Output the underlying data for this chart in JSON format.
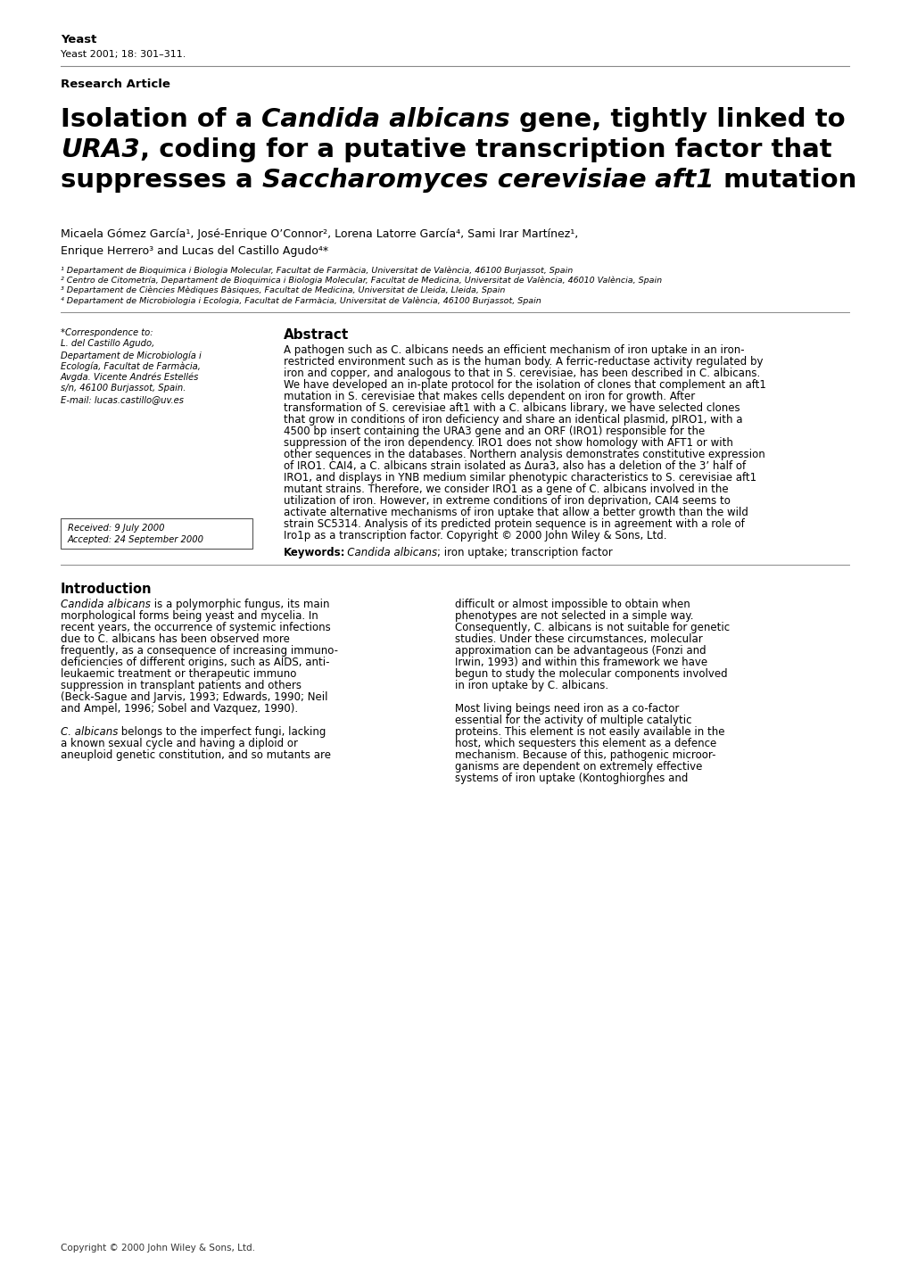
{
  "journal_name": "Yeast",
  "journal_citation": "Yeast 2001; 18: 301–311.",
  "article_type": "Research Article",
  "authors_line1": "Micaela Gómez García¹, José-Enrique O’Connor², Lorena Latorre García⁴, Sami Irar Martínez¹,",
  "authors_line2": "Enrique Herrero³ and Lucas del Castillo Agudo⁴*",
  "affil1": "¹ Departament de Bioquimica i Biologia Molecular, Facultat de Farmàcia, Universitat de València, 46100 Burjassot, Spain",
  "affil2": "² Centro de Citometría, Departament de Bioquimica i Biologia Molecular, Facultat de Medicina, Universitat de València, 46010 València, Spain",
  "affil3": "³ Departament de Ciències Mèdiques Bàsiques, Facultat de Medicina, Universitat de Lleida, Lleida, Spain",
  "affil4": "⁴ Departament de Microbiologia i Ecologia, Facultat de Farmàcia, Universitat de València, 46100 Burjassot, Spain",
  "corr1": "*Correspondence to:",
  "corr2": "L. del Castillo Agudo,",
  "corr3": "Departament de Microbiología i",
  "corr4": "Ecología, Facultat de Farmàcia,",
  "corr5": "Avgda. Vicente Andrés Estellés",
  "corr6": "s/n, 46100 Burjassot, Spain.",
  "corr7": "E-mail: lucas.castillo@uv.es",
  "received": "Received: 9 July 2000",
  "accepted": "Accepted: 24 September 2000",
  "abstract_text_lines": [
    "A pathogen such as C. albicans needs an efficient mechanism of iron uptake in an iron-",
    "restricted environment such as is the human body. A ferric-reductase activity regulated by",
    "iron and copper, and analogous to that in S. cerevisiae, has been described in C. albicans.",
    "We have developed an in-plate protocol for the isolation of clones that complement an aft1",
    "mutation in S. cerevisiae that makes cells dependent on iron for growth. After",
    "transformation of S. cerevisiae aft1 with a C. albicans library, we have selected clones",
    "that grow in conditions of iron deficiency and share an identical plasmid, pIRO1, with a",
    "4500 bp insert containing the URA3 gene and an ORF (IRO1) responsible for the",
    "suppression of the iron dependency. IRO1 does not show homology with AFT1 or with",
    "other sequences in the databases. Northern analysis demonstrates constitutive expression",
    "of IRO1. CAI4, a C. albicans strain isolated as Δura3, also has a deletion of the 3’ half of",
    "IRO1, and displays in YNB medium similar phenotypic characteristics to S. cerevisiae aft1",
    "mutant strains. Therefore, we consider IRO1 as a gene of C. albicans involved in the",
    "utilization of iron. However, in extreme conditions of iron deprivation, CAI4 seems to",
    "activate alternative mechanisms of iron uptake that allow a better growth than the wild",
    "strain SC5314. Analysis of its predicted protein sequence is in agreement with a role of",
    "Iro1p as a transcription factor. Copyright © 2000 John Wiley & Sons, Ltd."
  ],
  "keywords_text": "Candida albicans; iron uptake; transcription factor",
  "intro_left_lines": [
    "Candida albicans is a polymorphic fungus, its main",
    "morphological forms being yeast and mycelia. In",
    "recent years, the occurrence of systemic infections",
    "due to C. albicans has been observed more",
    "frequently, as a consequence of increasing immuno-",
    "deficiencies of different origins, such as AIDS, anti-",
    "leukaemic treatment or therapeutic immuno",
    "suppression in transplant patients and others",
    "(Beck-Sague and Jarvis, 1993; Edwards, 1990; Neil",
    "and Ampel, 1996; Sobel and Vazquez, 1990).",
    "",
    "C. albicans belongs to the imperfect fungi, lacking",
    "a known sexual cycle and having a diploid or",
    "aneuploid genetic constitution, and so mutants are"
  ],
  "intro_right_lines": [
    "difficult or almost impossible to obtain when",
    "phenotypes are not selected in a simple way.",
    "Consequently, C. albicans is not suitable for genetic",
    "studies. Under these circumstances, molecular",
    "approximation can be advantageous (Fonzi and",
    "Irwin, 1993) and within this framework we have",
    "begun to study the molecular components involved",
    "in iron uptake by C. albicans.",
    "",
    "Most living beings need iron as a co-factor",
    "essential for the activity of multiple catalytic",
    "proteins. This element is not easily available in the",
    "host, which sequesters this element as a defence",
    "mechanism. Because of this, pathogenic microor-",
    "ganisms are dependent on extremely effective",
    "systems of iron uptake (Kontoghiorghes and"
  ],
  "copyright_footer": "Copyright © 2000 John Wiley & Sons, Ltd.",
  "bg_color": "#ffffff",
  "line_color": "#aaaaaa"
}
